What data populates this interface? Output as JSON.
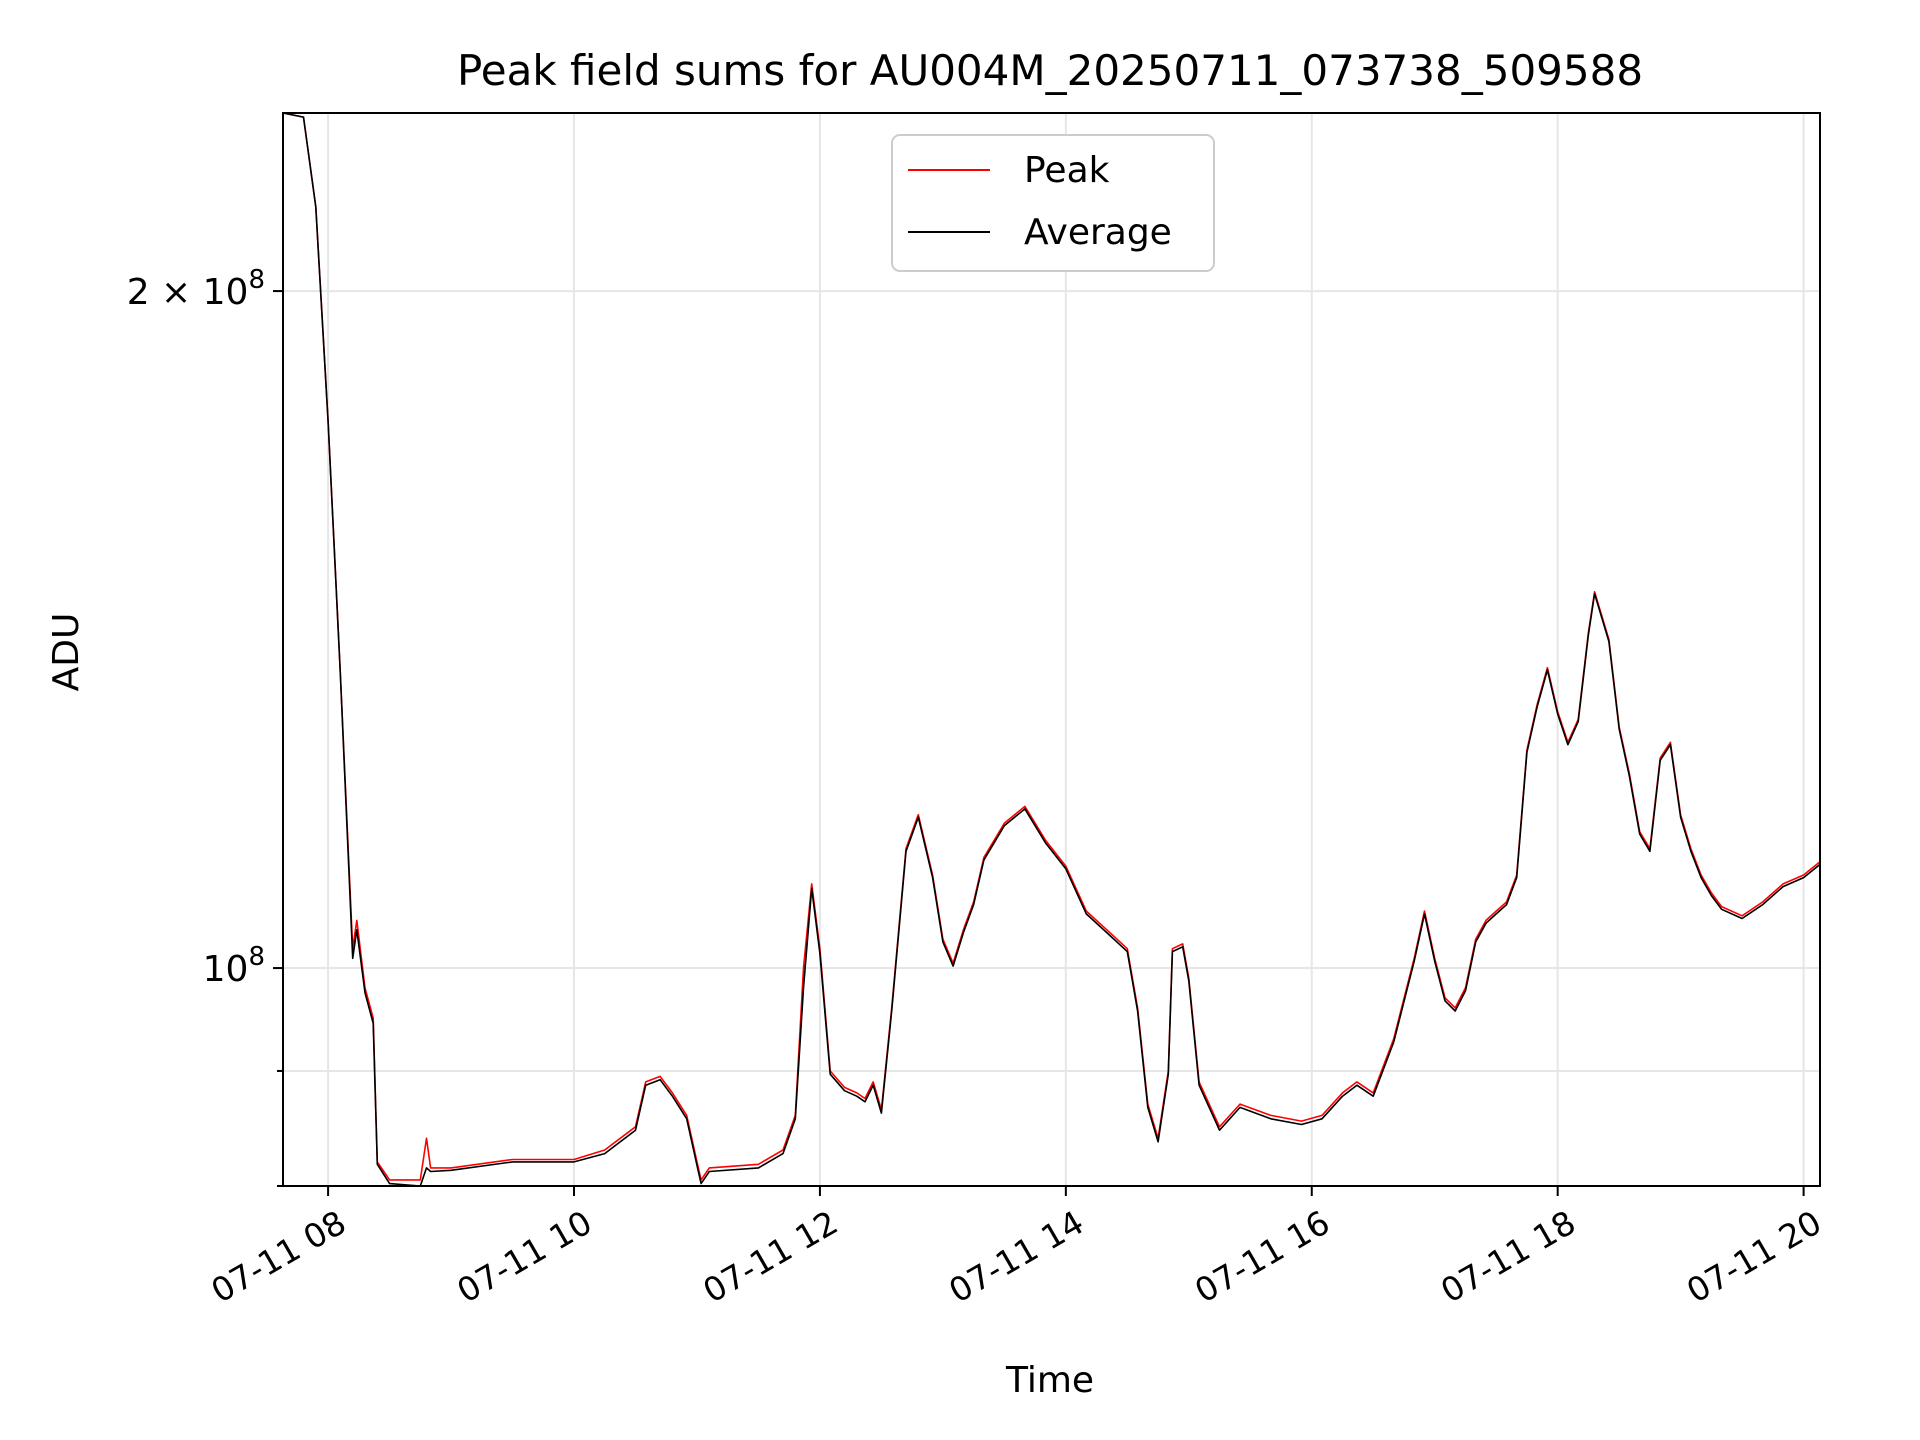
{
  "chart_data": {
    "type": "line",
    "title": "Peak field sums for AU004M_20250711_073738_509588",
    "xlabel": "Time",
    "ylabel": "ADU",
    "y_scale": "log",
    "grid": true,
    "legend_position": "top-center",
    "xlim": [
      "2025-07-11 07:38",
      "2025-07-11 20:08"
    ],
    "ylim": [
      80000000,
      240000000
    ],
    "x_ticks": [
      {
        "value": "2025-07-11 08:00",
        "label": "07-11 08"
      },
      {
        "value": "2025-07-11 10:00",
        "label": "07-11 10"
      },
      {
        "value": "2025-07-11 12:00",
        "label": "07-11 12"
      },
      {
        "value": "2025-07-11 14:00",
        "label": "07-11 14"
      },
      {
        "value": "2025-07-11 16:00",
        "label": "07-11 16"
      },
      {
        "value": "2025-07-11 18:00",
        "label": "07-11 18"
      },
      {
        "value": "2025-07-11 20:00",
        "label": "07-11 20"
      }
    ],
    "y_ticks": [
      {
        "value": 100000000,
        "base": "10",
        "exp": "8",
        "mant": ""
      },
      {
        "value": 200000000,
        "base": "10",
        "exp": "8",
        "mant": "2 × "
      }
    ],
    "y_minor_ticks": [
      80000000,
      90000000
    ],
    "series": [
      {
        "name": "Peak",
        "color": "#ff0000",
        "points": [
          [
            "2025-07-11 07:38",
            240000000
          ],
          [
            "2025-07-11 07:48",
            239000000
          ],
          [
            "2025-07-11 07:54",
            218000000
          ],
          [
            "2025-07-11 08:00",
            175000000
          ],
          [
            "2025-07-11 08:06",
            135000000
          ],
          [
            "2025-07-11 08:12",
            102000000
          ],
          [
            "2025-07-11 08:14",
            105000000
          ],
          [
            "2025-07-11 08:18",
            98000000
          ],
          [
            "2025-07-11 08:22",
            95000000
          ],
          [
            "2025-07-11 08:24",
            82000000
          ],
          [
            "2025-07-11 08:30",
            80500000
          ],
          [
            "2025-07-11 08:45",
            80500000
          ],
          [
            "2025-07-11 08:48",
            84000000
          ],
          [
            "2025-07-11 08:50",
            81500000
          ],
          [
            "2025-07-11 09:00",
            81500000
          ],
          [
            "2025-07-11 09:30",
            82200000
          ],
          [
            "2025-07-11 10:00",
            82200000
          ],
          [
            "2025-07-11 10:15",
            83000000
          ],
          [
            "2025-07-11 10:30",
            85000000
          ],
          [
            "2025-07-11 10:35",
            89000000
          ],
          [
            "2025-07-11 10:42",
            89500000
          ],
          [
            "2025-07-11 10:48",
            88000000
          ],
          [
            "2025-07-11 10:55",
            86000000
          ],
          [
            "2025-07-11 11:00",
            82000000
          ],
          [
            "2025-07-11 11:02",
            80500000
          ],
          [
            "2025-07-11 11:06",
            81500000
          ],
          [
            "2025-07-11 11:30",
            81800000
          ],
          [
            "2025-07-11 11:42",
            83000000
          ],
          [
            "2025-07-11 11:48",
            86000000
          ],
          [
            "2025-07-11 11:52",
            100000000
          ],
          [
            "2025-07-11 11:56",
            109000000
          ],
          [
            "2025-07-11 12:00",
            102000000
          ],
          [
            "2025-07-11 12:05",
            90000000
          ],
          [
            "2025-07-11 12:12",
            88500000
          ],
          [
            "2025-07-11 12:18",
            88000000
          ],
          [
            "2025-07-11 12:22",
            87500000
          ],
          [
            "2025-07-11 12:26",
            89000000
          ],
          [
            "2025-07-11 12:30",
            86500000
          ],
          [
            "2025-07-11 12:35",
            96000000
          ],
          [
            "2025-07-11 12:42",
            113000000
          ],
          [
            "2025-07-11 12:48",
            117000000
          ],
          [
            "2025-07-11 12:55",
            110000000
          ],
          [
            "2025-07-11 13:00",
            103000000
          ],
          [
            "2025-07-11 13:05",
            100500000
          ],
          [
            "2025-07-11 13:10",
            104000000
          ],
          [
            "2025-07-11 13:15",
            107000000
          ],
          [
            "2025-07-11 13:20",
            112000000
          ],
          [
            "2025-07-11 13:30",
            116000000
          ],
          [
            "2025-07-11 13:40",
            118000000
          ],
          [
            "2025-07-11 13:50",
            114000000
          ],
          [
            "2025-07-11 14:00",
            111000000
          ],
          [
            "2025-07-11 14:10",
            106000000
          ],
          [
            "2025-07-11 14:20",
            104000000
          ],
          [
            "2025-07-11 14:30",
            102000000
          ],
          [
            "2025-07-11 14:35",
            96000000
          ],
          [
            "2025-07-11 14:40",
            87000000
          ],
          [
            "2025-07-11 14:45",
            84000000
          ],
          [
            "2025-07-11 14:50",
            90000000
          ],
          [
            "2025-07-11 14:52",
            102000000
          ],
          [
            "2025-07-11 14:57",
            102500000
          ],
          [
            "2025-07-11 15:00",
            99000000
          ],
          [
            "2025-07-11 15:05",
            89000000
          ],
          [
            "2025-07-11 15:15",
            85000000
          ],
          [
            "2025-07-11 15:25",
            87000000
          ],
          [
            "2025-07-11 15:40",
            86000000
          ],
          [
            "2025-07-11 15:55",
            85500000
          ],
          [
            "2025-07-11 16:05",
            86000000
          ],
          [
            "2025-07-11 16:15",
            88000000
          ],
          [
            "2025-07-11 16:22",
            89000000
          ],
          [
            "2025-07-11 16:30",
            88000000
          ],
          [
            "2025-07-11 16:40",
            93000000
          ],
          [
            "2025-07-11 16:50",
            101000000
          ],
          [
            "2025-07-11 16:55",
            106000000
          ],
          [
            "2025-07-11 17:00",
            101000000
          ],
          [
            "2025-07-11 17:05",
            97000000
          ],
          [
            "2025-07-11 17:10",
            96000000
          ],
          [
            "2025-07-11 17:15",
            98000000
          ],
          [
            "2025-07-11 17:20",
            103000000
          ],
          [
            "2025-07-11 17:25",
            105000000
          ],
          [
            "2025-07-11 17:30",
            106000000
          ],
          [
            "2025-07-11 17:35",
            107000000
          ],
          [
            "2025-07-11 17:40",
            110000000
          ],
          [
            "2025-07-11 17:45",
            125000000
          ],
          [
            "2025-07-11 17:50",
            131000000
          ],
          [
            "2025-07-11 17:55",
            136000000
          ],
          [
            "2025-07-11 18:00",
            130000000
          ],
          [
            "2025-07-11 18:05",
            126000000
          ],
          [
            "2025-07-11 18:10",
            129000000
          ],
          [
            "2025-07-11 18:15",
            141000000
          ],
          [
            "2025-07-11 18:18",
            147000000
          ],
          [
            "2025-07-11 18:25",
            140000000
          ],
          [
            "2025-07-11 18:30",
            128000000
          ],
          [
            "2025-07-11 18:35",
            122000000
          ],
          [
            "2025-07-11 18:40",
            115000000
          ],
          [
            "2025-07-11 18:45",
            113000000
          ],
          [
            "2025-07-11 18:50",
            124000000
          ],
          [
            "2025-07-11 18:55",
            126000000
          ],
          [
            "2025-07-11 19:00",
            117000000
          ],
          [
            "2025-07-11 19:05",
            113000000
          ],
          [
            "2025-07-11 19:10",
            110000000
          ],
          [
            "2025-07-11 19:15",
            108000000
          ],
          [
            "2025-07-11 19:20",
            106500000
          ],
          [
            "2025-07-11 19:30",
            105500000
          ],
          [
            "2025-07-11 19:40",
            107000000
          ],
          [
            "2025-07-11 19:50",
            109000000
          ],
          [
            "2025-07-11 20:00",
            110000000
          ],
          [
            "2025-07-11 20:08",
            111500000
          ]
        ]
      },
      {
        "name": "Average",
        "color": "#000000",
        "points": [
          [
            "2025-07-11 07:38",
            240000000
          ],
          [
            "2025-07-11 07:48",
            239000000
          ],
          [
            "2025-07-11 07:54",
            218000000
          ],
          [
            "2025-07-11 08:00",
            175000000
          ],
          [
            "2025-07-11 08:06",
            135000000
          ],
          [
            "2025-07-11 08:12",
            101000000
          ],
          [
            "2025-07-11 08:14",
            104000000
          ],
          [
            "2025-07-11 08:18",
            97500000
          ],
          [
            "2025-07-11 08:22",
            94500000
          ],
          [
            "2025-07-11 08:24",
            81800000
          ],
          [
            "2025-07-11 08:30",
            80200000
          ],
          [
            "2025-07-11 08:45",
            80000000
          ],
          [
            "2025-07-11 08:48",
            81500000
          ],
          [
            "2025-07-11 08:50",
            81200000
          ],
          [
            "2025-07-11 09:00",
            81300000
          ],
          [
            "2025-07-11 09:30",
            82000000
          ],
          [
            "2025-07-11 10:00",
            82000000
          ],
          [
            "2025-07-11 10:15",
            82700000
          ],
          [
            "2025-07-11 10:30",
            84700000
          ],
          [
            "2025-07-11 10:35",
            88700000
          ],
          [
            "2025-07-11 10:42",
            89200000
          ],
          [
            "2025-07-11 10:48",
            87700000
          ],
          [
            "2025-07-11 10:55",
            85700000
          ],
          [
            "2025-07-11 11:00",
            81700000
          ],
          [
            "2025-07-11 11:02",
            80200000
          ],
          [
            "2025-07-11 11:06",
            81200000
          ],
          [
            "2025-07-11 11:30",
            81500000
          ],
          [
            "2025-07-11 11:42",
            82700000
          ],
          [
            "2025-07-11 11:48",
            85700000
          ],
          [
            "2025-07-11 11:52",
            98000000
          ],
          [
            "2025-07-11 11:56",
            108500000
          ],
          [
            "2025-07-11 12:00",
            101500000
          ],
          [
            "2025-07-11 12:05",
            89700000
          ],
          [
            "2025-07-11 12:12",
            88200000
          ],
          [
            "2025-07-11 12:18",
            87700000
          ],
          [
            "2025-07-11 12:22",
            87200000
          ],
          [
            "2025-07-11 12:26",
            88700000
          ],
          [
            "2025-07-11 12:30",
            86200000
          ],
          [
            "2025-07-11 12:35",
            95700000
          ],
          [
            "2025-07-11 12:42",
            112700000
          ],
          [
            "2025-07-11 12:48",
            116700000
          ],
          [
            "2025-07-11 12:55",
            109700000
          ],
          [
            "2025-07-11 13:00",
            102700000
          ],
          [
            "2025-07-11 13:05",
            100200000
          ],
          [
            "2025-07-11 13:10",
            103700000
          ],
          [
            "2025-07-11 13:15",
            106700000
          ],
          [
            "2025-07-11 13:20",
            111700000
          ],
          [
            "2025-07-11 13:30",
            115700000
          ],
          [
            "2025-07-11 13:40",
            117700000
          ],
          [
            "2025-07-11 13:50",
            113700000
          ],
          [
            "2025-07-11 14:00",
            110700000
          ],
          [
            "2025-07-11 14:10",
            105700000
          ],
          [
            "2025-07-11 14:20",
            103700000
          ],
          [
            "2025-07-11 14:30",
            101700000
          ],
          [
            "2025-07-11 14:35",
            95700000
          ],
          [
            "2025-07-11 14:40",
            86700000
          ],
          [
            "2025-07-11 14:45",
            83700000
          ],
          [
            "2025-07-11 14:50",
            89700000
          ],
          [
            "2025-07-11 14:52",
            101700000
          ],
          [
            "2025-07-11 14:57",
            102200000
          ],
          [
            "2025-07-11 15:00",
            98700000
          ],
          [
            "2025-07-11 15:05",
            88700000
          ],
          [
            "2025-07-11 15:15",
            84700000
          ],
          [
            "2025-07-11 15:25",
            86700000
          ],
          [
            "2025-07-11 15:40",
            85700000
          ],
          [
            "2025-07-11 15:55",
            85200000
          ],
          [
            "2025-07-11 16:05",
            85700000
          ],
          [
            "2025-07-11 16:15",
            87700000
          ],
          [
            "2025-07-11 16:22",
            88700000
          ],
          [
            "2025-07-11 16:30",
            87700000
          ],
          [
            "2025-07-11 16:40",
            92700000
          ],
          [
            "2025-07-11 16:50",
            100700000
          ],
          [
            "2025-07-11 16:55",
            105700000
          ],
          [
            "2025-07-11 17:00",
            100700000
          ],
          [
            "2025-07-11 17:05",
            96700000
          ],
          [
            "2025-07-11 17:10",
            95700000
          ],
          [
            "2025-07-11 17:15",
            97700000
          ],
          [
            "2025-07-11 17:20",
            102700000
          ],
          [
            "2025-07-11 17:25",
            104700000
          ],
          [
            "2025-07-11 17:30",
            105700000
          ],
          [
            "2025-07-11 17:35",
            106700000
          ],
          [
            "2025-07-11 17:40",
            109700000
          ],
          [
            "2025-07-11 17:45",
            124700000
          ],
          [
            "2025-07-11 17:50",
            130700000
          ],
          [
            "2025-07-11 17:55",
            135700000
          ],
          [
            "2025-07-11 18:00",
            129700000
          ],
          [
            "2025-07-11 18:05",
            125700000
          ],
          [
            "2025-07-11 18:10",
            128700000
          ],
          [
            "2025-07-11 18:15",
            140700000
          ],
          [
            "2025-07-11 18:18",
            146700000
          ],
          [
            "2025-07-11 18:25",
            139700000
          ],
          [
            "2025-07-11 18:30",
            127700000
          ],
          [
            "2025-07-11 18:35",
            121700000
          ],
          [
            "2025-07-11 18:40",
            114700000
          ],
          [
            "2025-07-11 18:45",
            112700000
          ],
          [
            "2025-07-11 18:50",
            123700000
          ],
          [
            "2025-07-11 18:55",
            125700000
          ],
          [
            "2025-07-11 19:00",
            116700000
          ],
          [
            "2025-07-11 19:05",
            112700000
          ],
          [
            "2025-07-11 19:10",
            109700000
          ],
          [
            "2025-07-11 19:15",
            107700000
          ],
          [
            "2025-07-11 19:20",
            106200000
          ],
          [
            "2025-07-11 19:30",
            105200000
          ],
          [
            "2025-07-11 19:40",
            106700000
          ],
          [
            "2025-07-11 19:50",
            108700000
          ],
          [
            "2025-07-11 20:00",
            109700000
          ],
          [
            "2025-07-11 20:08",
            111200000
          ]
        ]
      }
    ]
  }
}
